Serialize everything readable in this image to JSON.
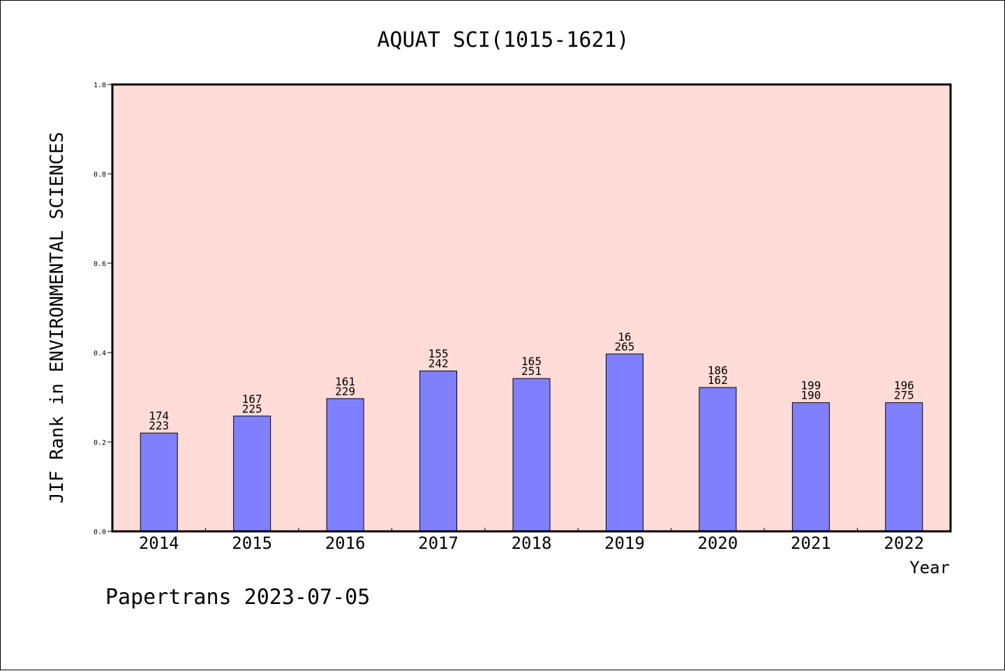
{
  "chart_data": {
    "type": "bar",
    "title": "AQUAT SCI(1015-1621)",
    "ylabel": "JIF Rank in ENVIRONMENTAL SCIENCES",
    "xlabel": "Year",
    "ylim": [
      0,
      1.0
    ],
    "yticks": [
      "0.0",
      "0.2",
      "0.4",
      "0.6",
      "0.8",
      "1.0"
    ],
    "categories": [
      "2014",
      "2015",
      "2016",
      "2017",
      "2018",
      "2019",
      "2020",
      "2021",
      "2022"
    ],
    "values": [
      0.22,
      0.258,
      0.297,
      0.359,
      0.342,
      0.397,
      0.322,
      0.288,
      0.288
    ],
    "label_top": [
      "174",
      "167",
      "161",
      "155",
      "165",
      "16",
      "186",
      "199",
      "196"
    ],
    "label_bottom": [
      "223",
      "225",
      "229",
      "242",
      "251",
      "265",
      "162",
      "190",
      "275"
    ],
    "bar_color": "#8080ff",
    "plot_background": "#ffdcd8",
    "grid": false,
    "legend": "none"
  },
  "footer": "Papertrans 2023-07-05"
}
